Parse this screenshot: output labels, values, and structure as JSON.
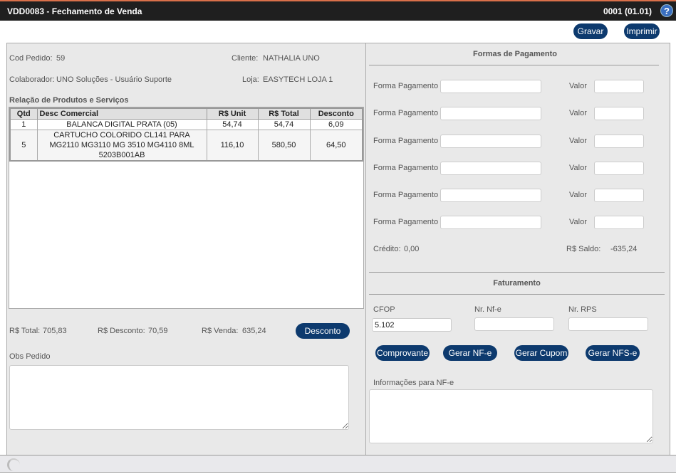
{
  "header": {
    "title": "VDD0083 - Fechamento de Venda",
    "version": "0001 (01.01)",
    "help_icon": "help-icon"
  },
  "toolbar": {
    "save": "Gravar",
    "print": "Imprimir"
  },
  "order": {
    "cod_label": "Cod Pedido:",
    "cod": "59",
    "cliente_label": "Cliente:",
    "cliente": "NATHALIA UNO",
    "colab_label": "Colaborador:",
    "colab": "UNO Soluções - Usuário Suporte",
    "loja_label": "Loja:",
    "loja": "EASYTECH LOJA 1"
  },
  "products": {
    "title": "Relação de Produtos e Serviços",
    "columns": [
      "Qtd",
      "Desc Comercial",
      "R$ Unit",
      "R$ Total",
      "Desconto"
    ],
    "rows": [
      [
        "1",
        "BALANCA DIGITAL PRATA (05)",
        "54,74",
        "54,74",
        "6,09"
      ],
      [
        "5",
        "CARTUCHO COLORIDO CL141 PARA MG2110 MG3110 MG 3510 MG4110 8ML 5203B001AB",
        "116,10",
        "580,50",
        "64,50"
      ]
    ]
  },
  "totals": {
    "total_label": "R$ Total:",
    "total": "705,83",
    "desconto_label": "R$ Desconto:",
    "desconto": "70,59",
    "venda_label": "R$ Venda:",
    "venda": "635,24",
    "desconto_button": "Desconto"
  },
  "obs": {
    "label": "Obs Pedido",
    "value": ""
  },
  "payment": {
    "title": "Formas de Pagamento",
    "forma_label": "Forma Pagamento",
    "valor_label": "Valor",
    "rows": [
      {
        "forma": "",
        "valor": ""
      },
      {
        "forma": "",
        "valor": ""
      },
      {
        "forma": "",
        "valor": ""
      },
      {
        "forma": "",
        "valor": ""
      },
      {
        "forma": "",
        "valor": ""
      },
      {
        "forma": "",
        "valor": ""
      }
    ],
    "credito_label": "Crédito:",
    "credito": "0,00",
    "saldo_label": "R$ Saldo:",
    "saldo": "-635,24"
  },
  "billing": {
    "title": "Faturamento",
    "cfop_label": "CFOP",
    "cfop": "5.102",
    "nfe_label": "Nr. Nf-e",
    "nfe": "",
    "rps_label": "Nr. RPS",
    "rps": "",
    "buttons": [
      "Comprovante",
      "Gerar NF-e",
      "Gerar Cupom",
      "Gerar NFS-e"
    ],
    "info_label": "Informações para NF-e",
    "info": ""
  }
}
